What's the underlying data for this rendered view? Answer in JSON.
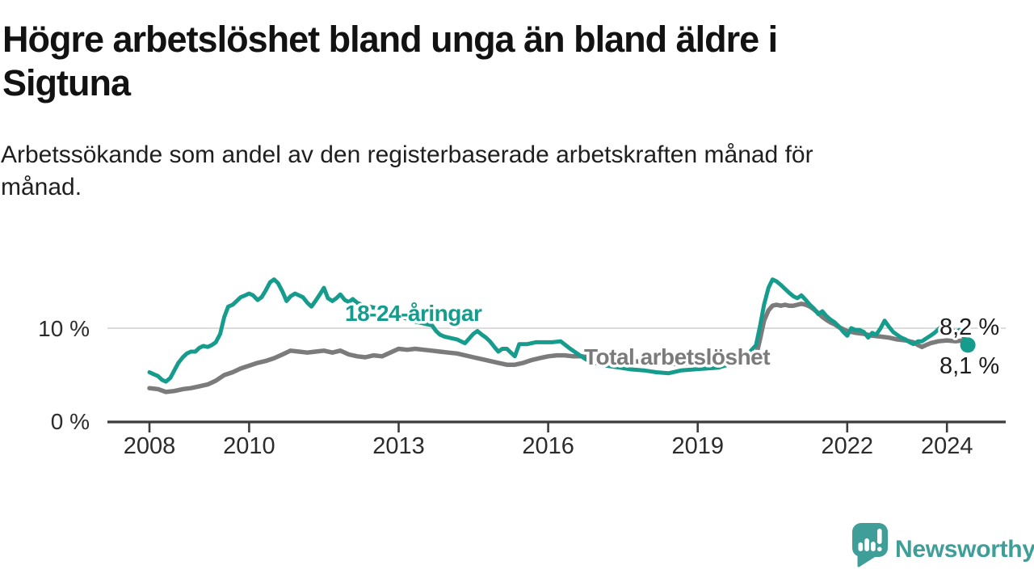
{
  "header": {
    "title_lines": [
      "Högre arbetslöshet bland unga än bland äldre i",
      "Sigtuna"
    ],
    "subtitle_lines": [
      "Arbetssökande som andel av den registerbaserade arbetskraften månad för",
      "månad."
    ]
  },
  "chart_data": {
    "type": "line",
    "title": "Högre arbetslöshet bland unga än bland äldre i Sigtuna",
    "subtitle": "Arbetssökande som andel av den registerbaserade arbetskraften månad för månad.",
    "unit": "%",
    "grid": "horizontal-10-only",
    "legend_position": "inline-labels-on-lines",
    "x_axis": {
      "range_years": [
        2008.0,
        2024.45
      ],
      "ticks": [
        {
          "year": 2008,
          "label": "2008"
        },
        {
          "year": 2010,
          "label": "2010"
        },
        {
          "year": 2013,
          "label": "2013"
        },
        {
          "year": 2016,
          "label": "2016"
        },
        {
          "year": 2019,
          "label": "2019"
        },
        {
          "year": 2022,
          "label": "2022"
        },
        {
          "year": 2024,
          "label": "2024"
        }
      ]
    },
    "y_axis": {
      "range": [
        0,
        16.5
      ],
      "ticks": [
        {
          "value": 0,
          "label": "0 %"
        },
        {
          "value": 10,
          "label": "10 %"
        }
      ]
    },
    "series": [
      {
        "name": "18-24-åringar",
        "color": "#169c8d",
        "last_value_label": "8,2 %",
        "end_dot": true,
        "points": [
          [
            2008.0,
            5.3
          ],
          [
            2008.08,
            5.1
          ],
          [
            2008.17,
            4.9
          ],
          [
            2008.25,
            4.5
          ],
          [
            2008.33,
            4.3
          ],
          [
            2008.42,
            4.7
          ],
          [
            2008.5,
            5.5
          ],
          [
            2008.58,
            6.3
          ],
          [
            2008.67,
            6.9
          ],
          [
            2008.75,
            7.3
          ],
          [
            2008.83,
            7.5
          ],
          [
            2008.92,
            7.5
          ],
          [
            2009.0,
            7.9
          ],
          [
            2009.08,
            8.1
          ],
          [
            2009.17,
            8.0
          ],
          [
            2009.25,
            8.2
          ],
          [
            2009.33,
            8.5
          ],
          [
            2009.42,
            9.4
          ],
          [
            2009.5,
            11.2
          ],
          [
            2009.58,
            12.3
          ],
          [
            2009.67,
            12.5
          ],
          [
            2009.75,
            12.9
          ],
          [
            2009.83,
            13.3
          ],
          [
            2009.92,
            13.5
          ],
          [
            2010.0,
            13.7
          ],
          [
            2010.08,
            13.5
          ],
          [
            2010.17,
            13.0
          ],
          [
            2010.25,
            13.3
          ],
          [
            2010.33,
            14.0
          ],
          [
            2010.42,
            14.9
          ],
          [
            2010.5,
            15.2
          ],
          [
            2010.58,
            14.8
          ],
          [
            2010.67,
            13.9
          ],
          [
            2010.75,
            12.9
          ],
          [
            2010.83,
            13.4
          ],
          [
            2010.92,
            13.7
          ],
          [
            2011.0,
            13.5
          ],
          [
            2011.08,
            13.3
          ],
          [
            2011.17,
            12.7
          ],
          [
            2011.25,
            12.3
          ],
          [
            2011.33,
            12.9
          ],
          [
            2011.42,
            13.6
          ],
          [
            2011.5,
            14.3
          ],
          [
            2011.58,
            13.2
          ],
          [
            2011.67,
            12.9
          ],
          [
            2011.75,
            13.2
          ],
          [
            2011.83,
            13.6
          ],
          [
            2011.92,
            13.0
          ],
          [
            2012.0,
            12.8
          ],
          [
            2012.08,
            13.1
          ],
          [
            2012.17,
            12.7
          ],
          [
            2012.33,
            12.4
          ],
          [
            2012.5,
            12.2
          ],
          [
            2012.67,
            11.9
          ],
          [
            2012.83,
            11.6
          ],
          [
            2013.0,
            11.3
          ],
          [
            2013.17,
            11.0
          ],
          [
            2013.33,
            10.7
          ],
          [
            2013.5,
            10.5
          ],
          [
            2013.67,
            10.3
          ],
          [
            2013.75,
            9.7
          ],
          [
            2013.83,
            9.3
          ],
          [
            2013.92,
            9.1
          ],
          [
            2014.0,
            9.0
          ],
          [
            2014.17,
            8.8
          ],
          [
            2014.33,
            8.4
          ],
          [
            2014.5,
            9.4
          ],
          [
            2014.58,
            9.7
          ],
          [
            2014.67,
            9.3
          ],
          [
            2014.75,
            9.0
          ],
          [
            2014.83,
            8.6
          ],
          [
            2014.92,
            8.0
          ],
          [
            2015.0,
            7.5
          ],
          [
            2015.08,
            7.8
          ],
          [
            2015.17,
            7.8
          ],
          [
            2015.33,
            7.0
          ],
          [
            2015.42,
            8.3
          ],
          [
            2015.58,
            8.3
          ],
          [
            2015.75,
            8.5
          ],
          [
            2015.92,
            8.5
          ],
          [
            2016.08,
            8.5
          ],
          [
            2016.25,
            8.6
          ],
          [
            2016.42,
            7.9
          ],
          [
            2016.58,
            7.3
          ],
          [
            2016.75,
            6.7
          ],
          [
            2016.92,
            6.3
          ],
          [
            2017.17,
            6.0
          ],
          [
            2017.42,
            5.8
          ],
          [
            2017.67,
            5.6
          ],
          [
            2017.92,
            5.5
          ],
          [
            2018.17,
            5.3
          ],
          [
            2018.42,
            5.2
          ],
          [
            2018.67,
            5.5
          ],
          [
            2018.92,
            5.6
          ],
          [
            2019.17,
            5.7
          ],
          [
            2019.42,
            5.8
          ],
          [
            2019.67,
            6.2
          ],
          [
            2019.83,
            6.6
          ],
          [
            2020.0,
            7.2
          ],
          [
            2020.17,
            8.2
          ],
          [
            2020.25,
            10.2
          ],
          [
            2020.33,
            12.5
          ],
          [
            2020.42,
            14.3
          ],
          [
            2020.5,
            15.2
          ],
          [
            2020.58,
            15.0
          ],
          [
            2020.67,
            14.6
          ],
          [
            2020.75,
            14.2
          ],
          [
            2020.83,
            13.8
          ],
          [
            2020.92,
            13.4
          ],
          [
            2021.0,
            13.2
          ],
          [
            2021.08,
            13.5
          ],
          [
            2021.17,
            13.0
          ],
          [
            2021.25,
            12.5
          ],
          [
            2021.33,
            12.1
          ],
          [
            2021.42,
            11.5
          ],
          [
            2021.5,
            11.8
          ],
          [
            2021.58,
            11.3
          ],
          [
            2021.67,
            10.9
          ],
          [
            2021.75,
            10.6
          ],
          [
            2021.83,
            10.2
          ],
          [
            2021.92,
            9.6
          ],
          [
            2022.0,
            9.2
          ],
          [
            2022.08,
            10.0
          ],
          [
            2022.17,
            9.8
          ],
          [
            2022.25,
            9.8
          ],
          [
            2022.33,
            9.6
          ],
          [
            2022.42,
            9.0
          ],
          [
            2022.5,
            9.5
          ],
          [
            2022.58,
            9.3
          ],
          [
            2022.67,
            10.0
          ],
          [
            2022.75,
            10.8
          ],
          [
            2022.83,
            10.2
          ],
          [
            2022.92,
            9.6
          ],
          [
            2023.0,
            9.3
          ],
          [
            2023.08,
            9.0
          ],
          [
            2023.17,
            8.8
          ],
          [
            2023.25,
            8.5
          ],
          [
            2023.33,
            8.3
          ],
          [
            2023.42,
            8.6
          ],
          [
            2023.5,
            8.6
          ],
          [
            2023.58,
            8.9
          ],
          [
            2023.67,
            9.2
          ],
          [
            2023.75,
            9.5
          ],
          [
            2023.83,
            9.9
          ],
          [
            2023.92,
            10.3
          ],
          [
            2024.0,
            10.6
          ],
          [
            2024.08,
            10.0
          ],
          [
            2024.17,
            9.5
          ],
          [
            2024.25,
            9.8
          ],
          [
            2024.33,
            9.1
          ],
          [
            2024.42,
            8.2
          ]
        ]
      },
      {
        "name": "Total arbetslöshet",
        "color": "#7b7b7b",
        "last_value_label": "8,1 %",
        "end_dot": false,
        "points": [
          [
            2008.0,
            3.6
          ],
          [
            2008.17,
            3.5
          ],
          [
            2008.33,
            3.2
          ],
          [
            2008.5,
            3.3
          ],
          [
            2008.67,
            3.5
          ],
          [
            2008.83,
            3.6
          ],
          [
            2009.0,
            3.8
          ],
          [
            2009.17,
            4.0
          ],
          [
            2009.33,
            4.4
          ],
          [
            2009.5,
            5.0
          ],
          [
            2009.67,
            5.3
          ],
          [
            2009.83,
            5.7
          ],
          [
            2010.0,
            6.0
          ],
          [
            2010.17,
            6.3
          ],
          [
            2010.33,
            6.5
          ],
          [
            2010.5,
            6.8
          ],
          [
            2010.67,
            7.2
          ],
          [
            2010.83,
            7.6
          ],
          [
            2011.0,
            7.5
          ],
          [
            2011.17,
            7.4
          ],
          [
            2011.33,
            7.5
          ],
          [
            2011.5,
            7.6
          ],
          [
            2011.67,
            7.4
          ],
          [
            2011.83,
            7.6
          ],
          [
            2012.0,
            7.2
          ],
          [
            2012.17,
            7.0
          ],
          [
            2012.33,
            6.9
          ],
          [
            2012.5,
            7.1
          ],
          [
            2012.67,
            7.0
          ],
          [
            2012.83,
            7.4
          ],
          [
            2013.0,
            7.8
          ],
          [
            2013.17,
            7.7
          ],
          [
            2013.33,
            7.8
          ],
          [
            2013.5,
            7.7
          ],
          [
            2013.67,
            7.6
          ],
          [
            2013.83,
            7.5
          ],
          [
            2014.0,
            7.4
          ],
          [
            2014.17,
            7.3
          ],
          [
            2014.33,
            7.1
          ],
          [
            2014.5,
            6.9
          ],
          [
            2014.67,
            6.7
          ],
          [
            2014.83,
            6.5
          ],
          [
            2015.0,
            6.3
          ],
          [
            2015.17,
            6.1
          ],
          [
            2015.33,
            6.1
          ],
          [
            2015.5,
            6.3
          ],
          [
            2015.67,
            6.6
          ],
          [
            2015.83,
            6.8
          ],
          [
            2016.0,
            7.0
          ],
          [
            2016.17,
            7.1
          ],
          [
            2016.33,
            7.1
          ],
          [
            2016.5,
            7.0
          ],
          [
            2016.67,
            7.0
          ],
          [
            2016.92,
            6.9
          ],
          [
            2017.17,
            6.8
          ],
          [
            2017.42,
            6.7
          ],
          [
            2017.67,
            6.5
          ],
          [
            2017.92,
            6.4
          ],
          [
            2018.17,
            6.3
          ],
          [
            2018.42,
            6.2
          ],
          [
            2018.67,
            6.2
          ],
          [
            2018.92,
            6.2
          ],
          [
            2019.17,
            6.3
          ],
          [
            2019.42,
            6.4
          ],
          [
            2019.67,
            6.5
          ],
          [
            2019.92,
            6.6
          ],
          [
            2020.08,
            6.8
          ],
          [
            2020.17,
            7.0
          ],
          [
            2020.25,
            8.8
          ],
          [
            2020.33,
            10.8
          ],
          [
            2020.42,
            11.9
          ],
          [
            2020.5,
            12.4
          ],
          [
            2020.58,
            12.5
          ],
          [
            2020.67,
            12.4
          ],
          [
            2020.75,
            12.5
          ],
          [
            2020.83,
            12.4
          ],
          [
            2020.92,
            12.4
          ],
          [
            2021.0,
            12.5
          ],
          [
            2021.08,
            12.6
          ],
          [
            2021.17,
            12.5
          ],
          [
            2021.25,
            12.3
          ],
          [
            2021.33,
            12.0
          ],
          [
            2021.42,
            11.6
          ],
          [
            2021.5,
            11.2
          ],
          [
            2021.58,
            10.9
          ],
          [
            2021.67,
            10.6
          ],
          [
            2021.75,
            10.4
          ],
          [
            2021.83,
            10.1
          ],
          [
            2021.92,
            9.9
          ],
          [
            2022.0,
            9.7
          ],
          [
            2022.17,
            9.5
          ],
          [
            2022.33,
            9.4
          ],
          [
            2022.5,
            9.2
          ],
          [
            2022.67,
            9.1
          ],
          [
            2022.83,
            9.0
          ],
          [
            2023.0,
            8.8
          ],
          [
            2023.17,
            8.7
          ],
          [
            2023.33,
            8.5
          ],
          [
            2023.42,
            8.2
          ],
          [
            2023.5,
            8.0
          ],
          [
            2023.58,
            8.2
          ],
          [
            2023.67,
            8.4
          ],
          [
            2023.83,
            8.6
          ],
          [
            2024.0,
            8.7
          ],
          [
            2024.17,
            8.6
          ],
          [
            2024.33,
            8.7
          ],
          [
            2024.42,
            8.1
          ]
        ]
      }
    ]
  },
  "footer": {
    "brand": "Newsworthy",
    "brand_color": "#3f9e97"
  }
}
